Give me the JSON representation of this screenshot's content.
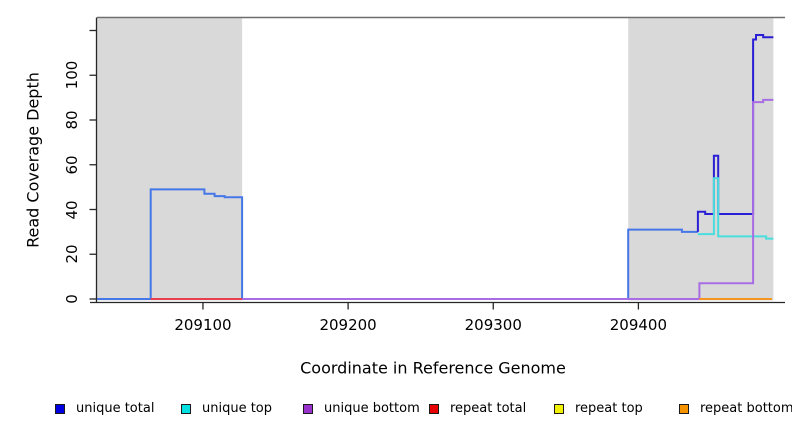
{
  "chart_data": {
    "type": "line",
    "title": "",
    "xlabel": "Coordinate in Reference Genome",
    "ylabel": "Read Coverage Depth",
    "grid": false,
    "legend_position": "bottom",
    "x_axis": {
      "min": 209027,
      "max": 209501,
      "ticks": [
        {
          "value": 209100,
          "label": "209100"
        },
        {
          "value": 209200,
          "label": "209200"
        },
        {
          "value": 209300,
          "label": "209300"
        },
        {
          "value": 209400,
          "label": "209400"
        }
      ]
    },
    "y_axis": {
      "min": 0,
      "max": 126,
      "ticks": [
        {
          "value": 0,
          "label": "0"
        },
        {
          "value": 20,
          "label": "20"
        },
        {
          "value": 40,
          "label": "40"
        },
        {
          "value": 60,
          "label": "60"
        },
        {
          "value": 80,
          "label": "80"
        },
        {
          "value": 100,
          "label": "100"
        },
        {
          "value": 120,
          "label": ""
        }
      ]
    },
    "shaded_regions": [
      {
        "x_start": 209027,
        "x_end": 209127,
        "color": "#d9d9d9"
      },
      {
        "x_start": 209393,
        "x_end": 209493,
        "color": "#d9d9d9"
      }
    ],
    "frame": {
      "top_line_color": "#6e6e6e",
      "axis_color": "#262626"
    },
    "series": [
      {
        "name": "unique total",
        "swatch_color": "#0000e0",
        "segments": [
          {
            "color": "#4677e8",
            "points": [
              [
                209027,
                0
              ],
              [
                209064,
                0
              ],
              [
                209064,
                49
              ],
              [
                209101,
                49
              ],
              [
                209101,
                47
              ],
              [
                209108,
                47
              ],
              [
                209108,
                46
              ],
              [
                209115,
                46
              ],
              [
                209115,
                45.5
              ],
              [
                209127,
                45.5
              ],
              [
                209127,
                0
              ],
              [
                209393,
                0
              ],
              [
                209393,
                31
              ],
              [
                209430,
                31
              ],
              [
                209430,
                30
              ],
              [
                209441,
                30
              ]
            ]
          },
          {
            "color": "#2b1fd6",
            "points": [
              [
                209441,
                30
              ],
              [
                209441,
                39
              ],
              [
                209446,
                39
              ],
              [
                209446,
                38
              ],
              [
                209452,
                38
              ],
              [
                209452,
                64
              ],
              [
                209455,
                64
              ],
              [
                209455,
                38
              ],
              [
                209479,
                38
              ],
              [
                209479,
                116
              ],
              [
                209481,
                116
              ],
              [
                209481,
                118
              ],
              [
                209486,
                118
              ],
              [
                209486,
                117
              ],
              [
                209493,
                117
              ]
            ]
          }
        ]
      },
      {
        "name": "unique top",
        "swatch_color": "#00e0e0",
        "segments": [
          {
            "color": "#4adddd",
            "points": [
              [
                209441,
                29
              ],
              [
                209452,
                29
              ],
              [
                209452,
                54
              ],
              [
                209455,
                54
              ],
              [
                209455,
                28
              ],
              [
                209488,
                28
              ],
              [
                209488,
                27
              ],
              [
                209493,
                27
              ]
            ]
          }
        ]
      },
      {
        "name": "unique bottom",
        "swatch_color": "#9932cc",
        "segments": [
          {
            "color": "#a86ce4",
            "points": [
              [
                209127,
                0
              ],
              [
                209442,
                0
              ],
              [
                209442,
                7
              ],
              [
                209479,
                7
              ],
              [
                209479,
                88
              ],
              [
                209486,
                88
              ],
              [
                209486,
                89
              ],
              [
                209493,
                89
              ]
            ]
          }
        ]
      },
      {
        "name": "repeat total",
        "swatch_color": "#e60000",
        "segments": [
          {
            "color": "#e8404e",
            "points": [
              [
                209064,
                0
              ],
              [
                209127,
                0
              ]
            ]
          }
        ]
      },
      {
        "name": "repeat top",
        "swatch_color": "#f2f200",
        "segments": [
          {
            "color": "#f2f200",
            "points": [
              [
                209442,
                0
              ],
              [
                209492,
                0
              ]
            ]
          }
        ]
      },
      {
        "name": "repeat bottom",
        "swatch_color": "#f59400",
        "segments": [
          {
            "color": "#f59420",
            "points": [
              [
                209442,
                0
              ],
              [
                209492,
                0
              ]
            ]
          }
        ]
      }
    ]
  }
}
